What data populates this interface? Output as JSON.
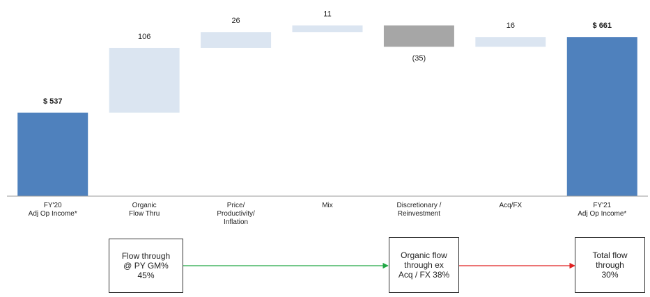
{
  "chart_data": {
    "type": "bar",
    "subtype": "waterfall",
    "categories": [
      "FY'20\nAdj Op Income*",
      "Organic\nFlow Thru",
      "Price/\nProductivity/\nInflation",
      "Mix",
      "Discretionary /\nReinvestment",
      "Acq/FX",
      "FY'21\nAdj Op Income*"
    ],
    "steps": [
      {
        "kind": "total",
        "value": 537,
        "label": "$ 537"
      },
      {
        "kind": "increase",
        "value": 106,
        "label": "106"
      },
      {
        "kind": "increase",
        "value": 26,
        "label": "26"
      },
      {
        "kind": "increase",
        "value": 11,
        "label": "11"
      },
      {
        "kind": "decrease",
        "value": -35,
        "label": "(35)"
      },
      {
        "kind": "increase",
        "value": 16,
        "label": "16"
      },
      {
        "kind": "total",
        "value": 661,
        "label": "$ 661"
      }
    ],
    "ylim": [
      400,
      700
    ],
    "colors": {
      "total": "#4f81bd",
      "increase": "#dbe5f1",
      "decrease": "#a6a6a6"
    },
    "grid": false
  },
  "annotations": [
    {
      "text": "Flow through\n@ PY GM%\n45%"
    },
    {
      "text": "Organic flow\nthrough ex\nAcq / FX 38%"
    },
    {
      "text": "Total flow\nthrough\n30%"
    }
  ],
  "arrow_colors": [
    "#22a845",
    "#e02020"
  ]
}
